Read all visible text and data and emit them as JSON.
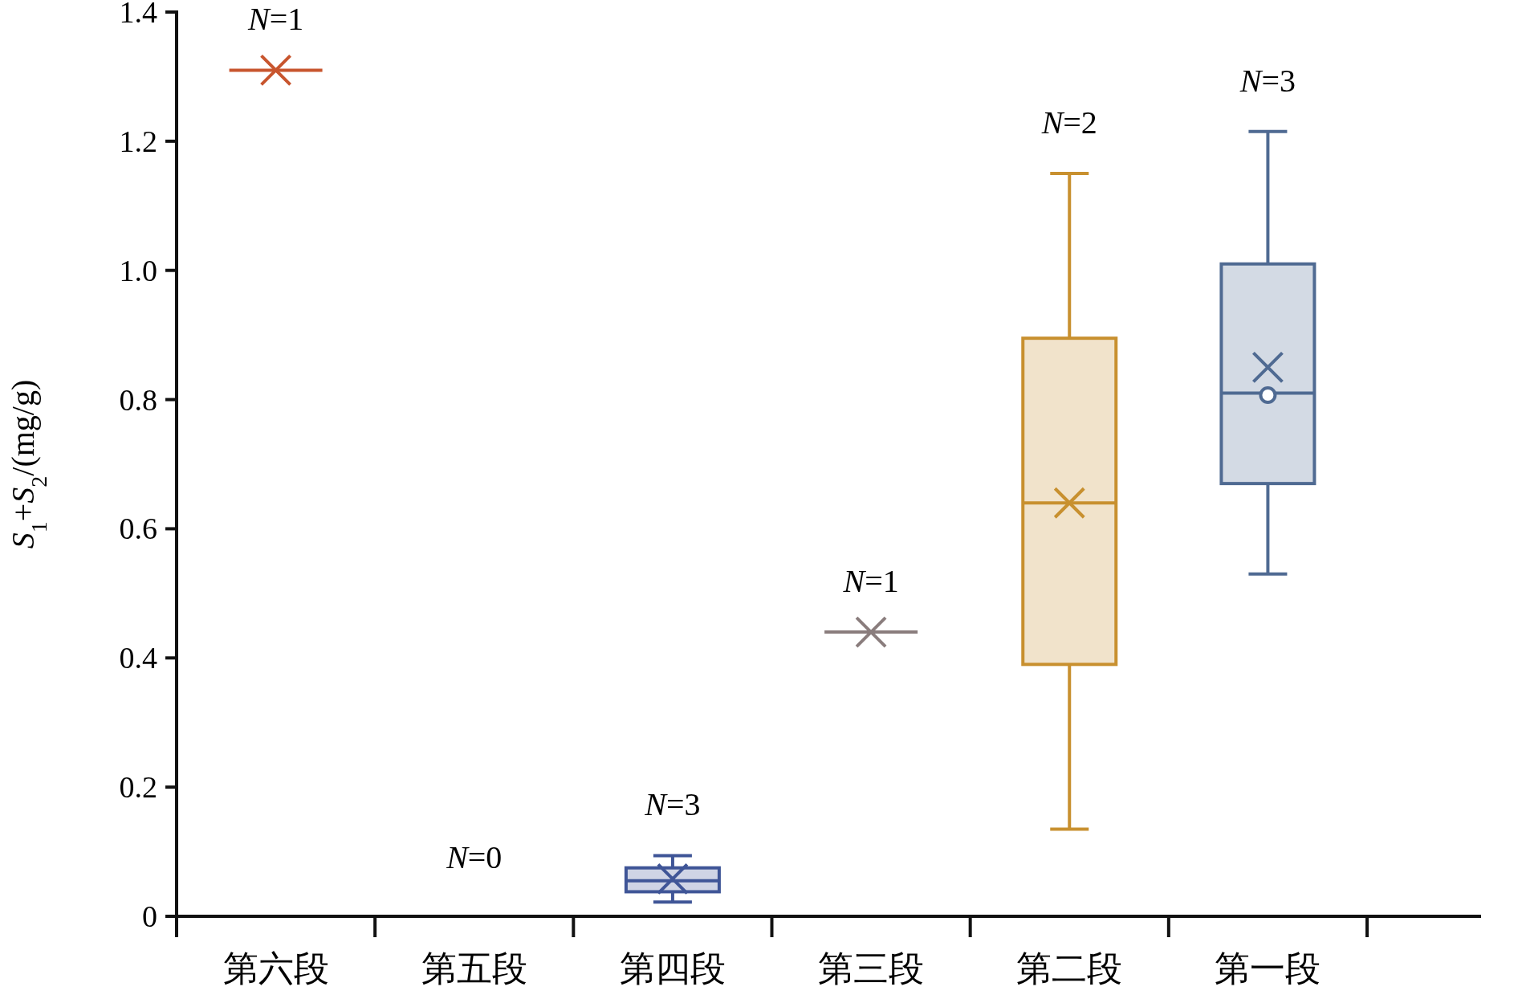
{
  "chart_data": {
    "type": "box",
    "ylabel": "*S*$_{1}$+*S*$_{2}$/(mg/g)",
    "categories": [
      "第六段",
      "第五段",
      "第四段",
      "第三段",
      "第二段",
      "第一段"
    ],
    "boxes": [
      {
        "low": 1.31,
        "q1": 1.31,
        "median": 1.31,
        "q3": 1.31,
        "high": 1.31,
        "mean": 1.31
      },
      null,
      {
        "low": 0.022,
        "q1": 0.038,
        "median": 0.055,
        "q3": 0.075,
        "high": 0.094,
        "mean": 0.058
      },
      {
        "low": 0.44,
        "q1": 0.44,
        "median": 0.44,
        "q3": 0.44,
        "high": 0.44,
        "mean": 0.44
      },
      {
        "low": 0.135,
        "q1": 0.39,
        "median": 0.64,
        "q3": 0.895,
        "high": 1.15,
        "mean": 0.64
      },
      {
        "low": 0.53,
        "q1": 0.67,
        "median": 0.81,
        "q3": 1.01,
        "high": 1.215,
        "mean": 0.85
      }
    ],
    "colors": [
      "#c8552e",
      null,
      "#3f5597",
      "#8a7d7d",
      "#c8902f",
      "#4f6a92"
    ],
    "series": [
      {
        "type": "scatter",
        "x": [
          "第一段"
        ],
        "values": [
          0.807
        ],
        "color": "#4f6a92",
        "marker": "circle"
      }
    ],
    "ylim": [
      0,
      1.4
    ],
    "yticks": [
      0,
      0.2,
      0.4,
      0.6,
      0.8,
      {
        "value": 1,
        "label": "1.0"
      },
      1.2,
      1.4
    ],
    "annotations": [
      "*N*=1",
      "*N*=0",
      "*N*=3",
      "*N*=1",
      "*N*=2",
      "*N*=3"
    ]
  }
}
